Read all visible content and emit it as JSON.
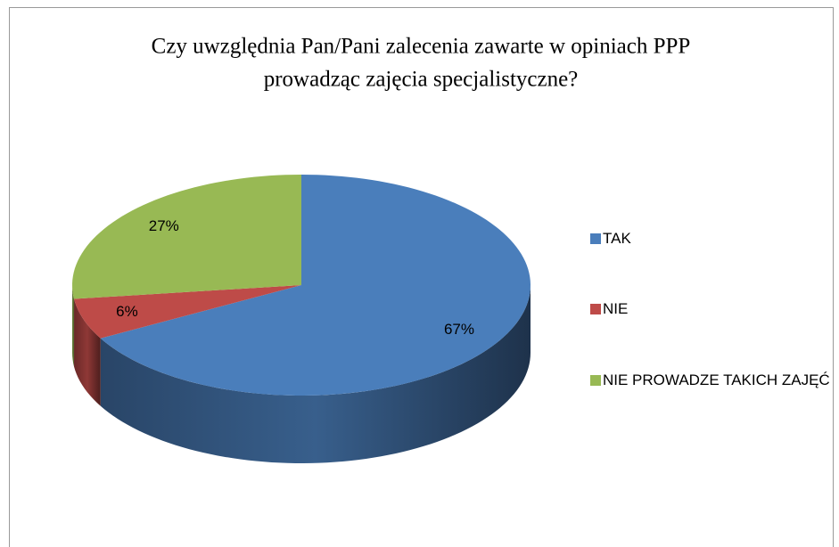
{
  "chart_data": {
    "type": "pie3d",
    "title": [
      "Czy uwzględnia Pan/Pani zalecenia zawarte w opiniach PPP",
      "prowadząc zajęcia specjalistyczne?"
    ],
    "categories": [
      "TAK",
      "NIE",
      "NIE PROWADZE TAKICH ZAJĘĆ"
    ],
    "values": [
      67,
      6,
      27
    ],
    "value_labels": [
      "67%",
      "6%",
      "27%"
    ],
    "colors": [
      "#4a7ebb",
      "#be4b48",
      "#98b954"
    ],
    "legend": "right"
  }
}
